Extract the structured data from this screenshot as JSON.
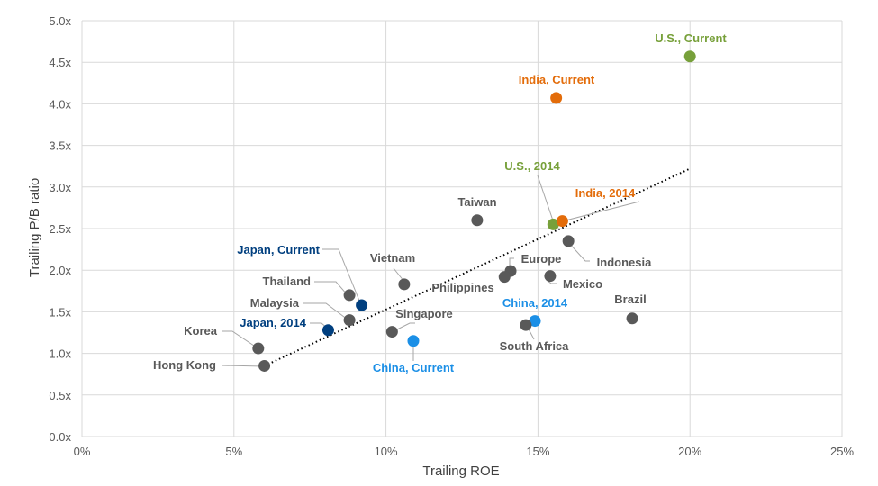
{
  "chart_data": {
    "type": "scatter",
    "title": "",
    "xlabel": "Trailing ROE",
    "ylabel": "Trailing P/B ratio",
    "xlim": [
      0,
      25
    ],
    "ylim": [
      0,
      5
    ],
    "x_ticks": [
      {
        "v": 0,
        "label": "0%"
      },
      {
        "v": 5,
        "label": "5%"
      },
      {
        "v": 10,
        "label": "10%"
      },
      {
        "v": 15,
        "label": "15%"
      },
      {
        "v": 20,
        "label": "20%"
      },
      {
        "v": 25,
        "label": "25%"
      }
    ],
    "y_ticks": [
      {
        "v": 0,
        "label": "0.0x"
      },
      {
        "v": 0.5,
        "label": "0.5x"
      },
      {
        "v": 1,
        "label": "1.0x"
      },
      {
        "v": 1.5,
        "label": "1.5x"
      },
      {
        "v": 2,
        "label": "2.0x"
      },
      {
        "v": 2.5,
        "label": "2.5x"
      },
      {
        "v": 3,
        "label": "3.0x"
      },
      {
        "v": 3.5,
        "label": "3.5x"
      },
      {
        "v": 4,
        "label": "4.0x"
      },
      {
        "v": 4.5,
        "label": "4.5x"
      },
      {
        "v": 5,
        "label": "5.0x"
      }
    ],
    "grid": true,
    "colors": {
      "default": "#595959",
      "us": "#77a03a",
      "india": "#e36c0a",
      "japan": "#003f7f",
      "china": "#1b8fe6"
    },
    "trendline": {
      "style": "dotted",
      "x": [
        6,
        20
      ],
      "y": [
        0.85,
        3.22
      ]
    },
    "points": [
      {
        "label": "U.S., Current",
        "x": 20.0,
        "y": 4.57,
        "group": "us"
      },
      {
        "label": "India, Current",
        "x": 15.6,
        "y": 4.07,
        "group": "india"
      },
      {
        "label": "U.S., 2014",
        "x": 15.5,
        "y": 2.55,
        "group": "us"
      },
      {
        "label": "India, 2014",
        "x": 15.8,
        "y": 2.59,
        "group": "india"
      },
      {
        "label": "Taiwan",
        "x": 13.0,
        "y": 2.6,
        "group": "default"
      },
      {
        "label": "Indonesia",
        "x": 16.0,
        "y": 2.35,
        "group": "default"
      },
      {
        "label": "Europe",
        "x": 14.1,
        "y": 1.99,
        "group": "default"
      },
      {
        "label": "Philippines",
        "x": 13.9,
        "y": 1.92,
        "group": "default"
      },
      {
        "label": "Mexico",
        "x": 15.4,
        "y": 1.93,
        "group": "default"
      },
      {
        "label": "Vietnam",
        "x": 10.6,
        "y": 1.83,
        "group": "default"
      },
      {
        "label": "Brazil",
        "x": 18.1,
        "y": 1.42,
        "group": "default"
      },
      {
        "label": "China, 2014",
        "x": 14.9,
        "y": 1.39,
        "group": "china"
      },
      {
        "label": "South Africa",
        "x": 14.6,
        "y": 1.34,
        "group": "default"
      },
      {
        "label": "Singapore",
        "x": 10.2,
        "y": 1.26,
        "group": "default"
      },
      {
        "label": "China, Current",
        "x": 10.9,
        "y": 1.15,
        "group": "china"
      },
      {
        "label": "Thailand",
        "x": 8.8,
        "y": 1.7,
        "group": "default"
      },
      {
        "label": "Japan, Current",
        "x": 9.2,
        "y": 1.58,
        "group": "japan"
      },
      {
        "label": "Malaysia",
        "x": 8.8,
        "y": 1.4,
        "group": "default"
      },
      {
        "label": "Japan, 2014",
        "x": 8.1,
        "y": 1.28,
        "group": "japan"
      },
      {
        "label": "Korea",
        "x": 5.8,
        "y": 1.06,
        "group": "default"
      },
      {
        "label": "Hong Kong",
        "x": 6.0,
        "y": 0.85,
        "group": "default"
      }
    ]
  }
}
